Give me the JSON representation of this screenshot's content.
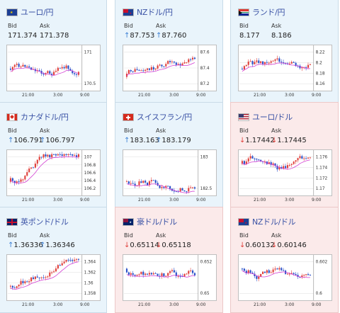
{
  "colors": {
    "up_card_bg": "#e9f4fb",
    "down_card_bg": "#fbeaea",
    "title": "#3a52a5",
    "up_arrow": "#3b7fd4",
    "down_arrow": "#e0413c",
    "candle_up": "#e0413c",
    "candle_down": "#2a51c9",
    "ma_line": "#d23ad2"
  },
  "labels": {
    "bid": "Bid",
    "ask": "Ask"
  },
  "time_axis": [
    "21:00",
    "3:00",
    "9:00"
  ],
  "cards": [
    {
      "id": "eur-jpy",
      "title": "ユーロ/円",
      "flag": "eu-flag-icon",
      "trend": "flat",
      "bid": "171.374",
      "ask": "171.378",
      "yticks": [
        "171",
        "170.5"
      ]
    },
    {
      "id": "nzd-jpy",
      "title": "NZドル/円",
      "flag": "nz-flag-icon",
      "trend": "up",
      "bid": "87.753",
      "ask": "87.760",
      "yticks": [
        "87.6",
        "87.4",
        "87.2"
      ]
    },
    {
      "id": "zar-jpy",
      "title": "ランド/円",
      "flag": "za-flag-icon",
      "trend": "flat",
      "bid": "8.177",
      "ask": "8.186",
      "yticks": [
        "8.22",
        "8.2",
        "8.18",
        "8.16"
      ]
    },
    {
      "id": "cad-jpy",
      "title": "カナダドル/円",
      "flag": "ca-flag-icon",
      "trend": "up",
      "bid": "106.791",
      "ask": "106.797",
      "yticks": [
        "107",
        "106.8",
        "106.6",
        "106.4",
        "106.2"
      ]
    },
    {
      "id": "chf-jpy",
      "title": "スイスフラン/円",
      "flag": "ch-flag-icon",
      "trend": "up",
      "bid": "183.163",
      "ask": "183.179",
      "yticks": [
        "183",
        "182.5"
      ]
    },
    {
      "id": "eur-usd",
      "title": "ユーロ/ドル",
      "flag": "us-flag-icon",
      "trend": "down",
      "bid": "1.17442",
      "ask": "1.17445",
      "yticks": [
        "1.176",
        "1.174",
        "1.172",
        "1.17"
      ]
    },
    {
      "id": "gbp-usd",
      "title": "英ポンド/ドル",
      "flag": "uk-flag-icon",
      "trend": "up",
      "bid": "1.36336",
      "ask": "1.36346",
      "yticks": [
        "1.364",
        "1.362",
        "1.36",
        "1.358"
      ]
    },
    {
      "id": "aud-usd",
      "title": "豪ドル/ドル",
      "flag": "au-flag-icon",
      "trend": "down",
      "bid": "0.65114",
      "ask": "0.65118",
      "yticks": [
        "0.652",
        "0.65"
      ]
    },
    {
      "id": "nzd-usd",
      "title": "NZドル/ドル",
      "flag": "nz-flag-icon",
      "trend": "down",
      "bid": "0.60132",
      "ask": "0.60146",
      "yticks": [
        "0.602",
        "0.6"
      ]
    }
  ]
}
